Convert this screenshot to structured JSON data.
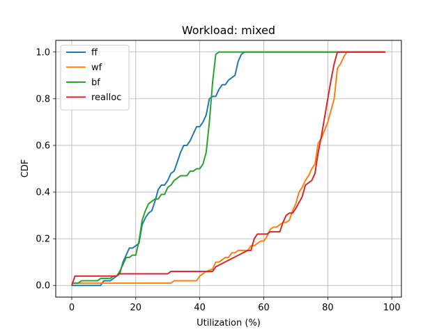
{
  "chart_data": {
    "type": "line",
    "title": "Workload: mixed",
    "xlabel": "Utilization (%)",
    "ylabel": "CDF",
    "xlim": [
      -5,
      103
    ],
    "ylim": [
      -0.05,
      1.05
    ],
    "xticks": [
      0,
      20,
      40,
      60,
      80,
      100
    ],
    "yticks": [
      0.0,
      0.2,
      0.4,
      0.6,
      0.8,
      1.0
    ],
    "xtick_labels": [
      "0",
      "20",
      "40",
      "60",
      "80",
      "100"
    ],
    "ytick_labels": [
      "0.0",
      "0.2",
      "0.4",
      "0.6",
      "0.8",
      "1.0"
    ],
    "grid": true,
    "legend_position": "top-left",
    "series": [
      {
        "name": "ff",
        "color": "#1f77b4",
        "points": [
          [
            0,
            0.0
          ],
          [
            9,
            0.0
          ],
          [
            10,
            0.02
          ],
          [
            12,
            0.02
          ],
          [
            13,
            0.03
          ],
          [
            15,
            0.05
          ],
          [
            16,
            0.1
          ],
          [
            17,
            0.13
          ],
          [
            18,
            0.16
          ],
          [
            19,
            0.16
          ],
          [
            20,
            0.17
          ],
          [
            21,
            0.18
          ],
          [
            22,
            0.26
          ],
          [
            23,
            0.29
          ],
          [
            24,
            0.31
          ],
          [
            25,
            0.32
          ],
          [
            26,
            0.36
          ],
          [
            27,
            0.41
          ],
          [
            28,
            0.43
          ],
          [
            29,
            0.43
          ],
          [
            30,
            0.45
          ],
          [
            31,
            0.48
          ],
          [
            32,
            0.49
          ],
          [
            33,
            0.53
          ],
          [
            34,
            0.57
          ],
          [
            35,
            0.6
          ],
          [
            36,
            0.6
          ],
          [
            37,
            0.62
          ],
          [
            38,
            0.65
          ],
          [
            39,
            0.68
          ],
          [
            40,
            0.68
          ],
          [
            41,
            0.7
          ],
          [
            42,
            0.73
          ],
          [
            43,
            0.8
          ],
          [
            44,
            0.81
          ],
          [
            45,
            0.81
          ],
          [
            46,
            0.84
          ],
          [
            47,
            0.86
          ],
          [
            48,
            0.86
          ],
          [
            49,
            0.88
          ],
          [
            50,
            0.89
          ],
          [
            51,
            0.9
          ],
          [
            52,
            0.96
          ],
          [
            53,
            0.99
          ],
          [
            54,
            1.0
          ],
          [
            98,
            1.0
          ]
        ]
      },
      {
        "name": "wf",
        "color": "#ff7f0e",
        "points": [
          [
            0,
            0.01
          ],
          [
            31,
            0.01
          ],
          [
            32,
            0.02
          ],
          [
            39,
            0.02
          ],
          [
            40,
            0.04
          ],
          [
            42,
            0.06
          ],
          [
            44,
            0.07
          ],
          [
            45,
            0.1
          ],
          [
            46,
            0.1
          ],
          [
            48,
            0.12
          ],
          [
            49,
            0.12
          ],
          [
            50,
            0.14
          ],
          [
            51,
            0.14
          ],
          [
            52,
            0.15
          ],
          [
            55,
            0.15
          ],
          [
            56,
            0.17
          ],
          [
            57,
            0.17
          ],
          [
            59,
            0.19
          ],
          [
            60,
            0.19
          ],
          [
            61,
            0.21
          ],
          [
            62,
            0.24
          ],
          [
            63,
            0.25
          ],
          [
            64,
            0.25
          ],
          [
            66,
            0.27
          ],
          [
            67,
            0.27
          ],
          [
            68,
            0.28
          ],
          [
            69,
            0.32
          ],
          [
            70,
            0.35
          ],
          [
            71,
            0.4
          ],
          [
            72,
            0.42
          ],
          [
            73,
            0.45
          ],
          [
            74,
            0.47
          ],
          [
            75,
            0.5
          ],
          [
            76,
            0.52
          ],
          [
            77,
            0.61
          ],
          [
            78,
            0.63
          ],
          [
            80,
            0.7
          ],
          [
            82,
            0.8
          ],
          [
            83,
            0.93
          ],
          [
            84,
            0.95
          ],
          [
            85,
            0.98
          ],
          [
            86,
            1.0
          ],
          [
            98,
            1.0
          ]
        ]
      },
      {
        "name": "bf",
        "color": "#2ca02c",
        "points": [
          [
            0,
            0.01
          ],
          [
            1,
            0.01
          ],
          [
            2,
            0.01
          ],
          [
            3,
            0.02
          ],
          [
            8,
            0.02
          ],
          [
            9,
            0.03
          ],
          [
            10,
            0.03
          ],
          [
            11,
            0.03
          ],
          [
            12,
            0.03
          ],
          [
            13,
            0.04
          ],
          [
            14,
            0.04
          ],
          [
            15,
            0.06
          ],
          [
            16,
            0.09
          ],
          [
            17,
            0.12
          ],
          [
            18,
            0.12
          ],
          [
            19,
            0.13
          ],
          [
            20,
            0.13
          ],
          [
            21,
            0.19
          ],
          [
            22,
            0.28
          ],
          [
            23,
            0.32
          ],
          [
            24,
            0.35
          ],
          [
            25,
            0.36
          ],
          [
            26,
            0.37
          ],
          [
            27,
            0.37
          ],
          [
            28,
            0.39
          ],
          [
            29,
            0.39
          ],
          [
            30,
            0.42
          ],
          [
            31,
            0.43
          ],
          [
            32,
            0.45
          ],
          [
            33,
            0.46
          ],
          [
            34,
            0.47
          ],
          [
            35,
            0.47
          ],
          [
            36,
            0.47
          ],
          [
            37,
            0.49
          ],
          [
            38,
            0.49
          ],
          [
            39,
            0.5
          ],
          [
            40,
            0.5
          ],
          [
            41,
            0.52
          ],
          [
            42,
            0.57
          ],
          [
            43,
            0.7
          ],
          [
            44,
            0.87
          ],
          [
            45,
            0.99
          ],
          [
            46,
            1.0
          ],
          [
            98,
            1.0
          ]
        ]
      },
      {
        "name": "realloc",
        "color": "#d62728",
        "points": [
          [
            0,
            0.0
          ],
          [
            1,
            0.04
          ],
          [
            12,
            0.04
          ],
          [
            13,
            0.04
          ],
          [
            14,
            0.04
          ],
          [
            15,
            0.05
          ],
          [
            30,
            0.05
          ],
          [
            31,
            0.06
          ],
          [
            43,
            0.06
          ],
          [
            44,
            0.06
          ],
          [
            45,
            0.08
          ],
          [
            55,
            0.15
          ],
          [
            56,
            0.15
          ],
          [
            57,
            0.2
          ],
          [
            58,
            0.22
          ],
          [
            61,
            0.22
          ],
          [
            62,
            0.23
          ],
          [
            65,
            0.23
          ],
          [
            66,
            0.27
          ],
          [
            67,
            0.3
          ],
          [
            68,
            0.31
          ],
          [
            69,
            0.31
          ],
          [
            70,
            0.33
          ],
          [
            72,
            0.38
          ],
          [
            73,
            0.43
          ],
          [
            74,
            0.44
          ],
          [
            75,
            0.45
          ],
          [
            76,
            0.48
          ],
          [
            77,
            0.57
          ],
          [
            78,
            0.64
          ],
          [
            79,
            0.72
          ],
          [
            80,
            0.8
          ],
          [
            81,
            0.88
          ],
          [
            82,
            0.95
          ],
          [
            83,
            1.0
          ],
          [
            98,
            1.0
          ]
        ]
      }
    ]
  }
}
